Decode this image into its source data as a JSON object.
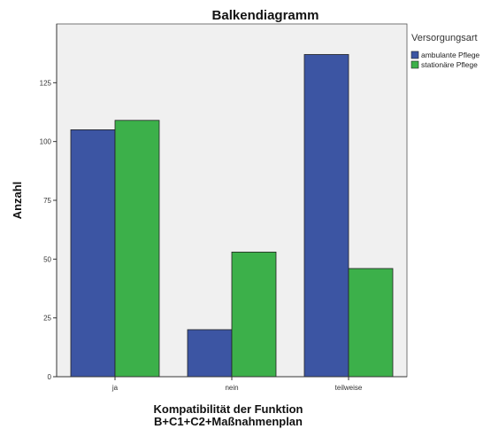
{
  "chart_data": {
    "type": "bar",
    "title": "Balkendiagramm",
    "xlabel": [
      "Kompatibilität der Funktion",
      "B+C1+C2+Maßnahmenplan"
    ],
    "ylabel": "Anzahl",
    "categories": [
      "ja",
      "nein",
      "teilweise"
    ],
    "series": [
      {
        "name": "ambulante Pflege",
        "values": [
          105,
          20,
          137
        ],
        "color": "#3c55a3"
      },
      {
        "name": "stationäre Pflege",
        "values": [
          109,
          53,
          46
        ],
        "color": "#3cb04a"
      }
    ],
    "ylim": [
      0,
      150
    ],
    "yticks": [
      0,
      25,
      50,
      75,
      100,
      125
    ],
    "ytick_labels": [
      "0",
      "25",
      "50",
      "75",
      "100",
      "125"
    ],
    "legend": {
      "title": "Versorgungsart",
      "placement": "right"
    },
    "plot_background": "#f0f0f0",
    "grid": false
  }
}
